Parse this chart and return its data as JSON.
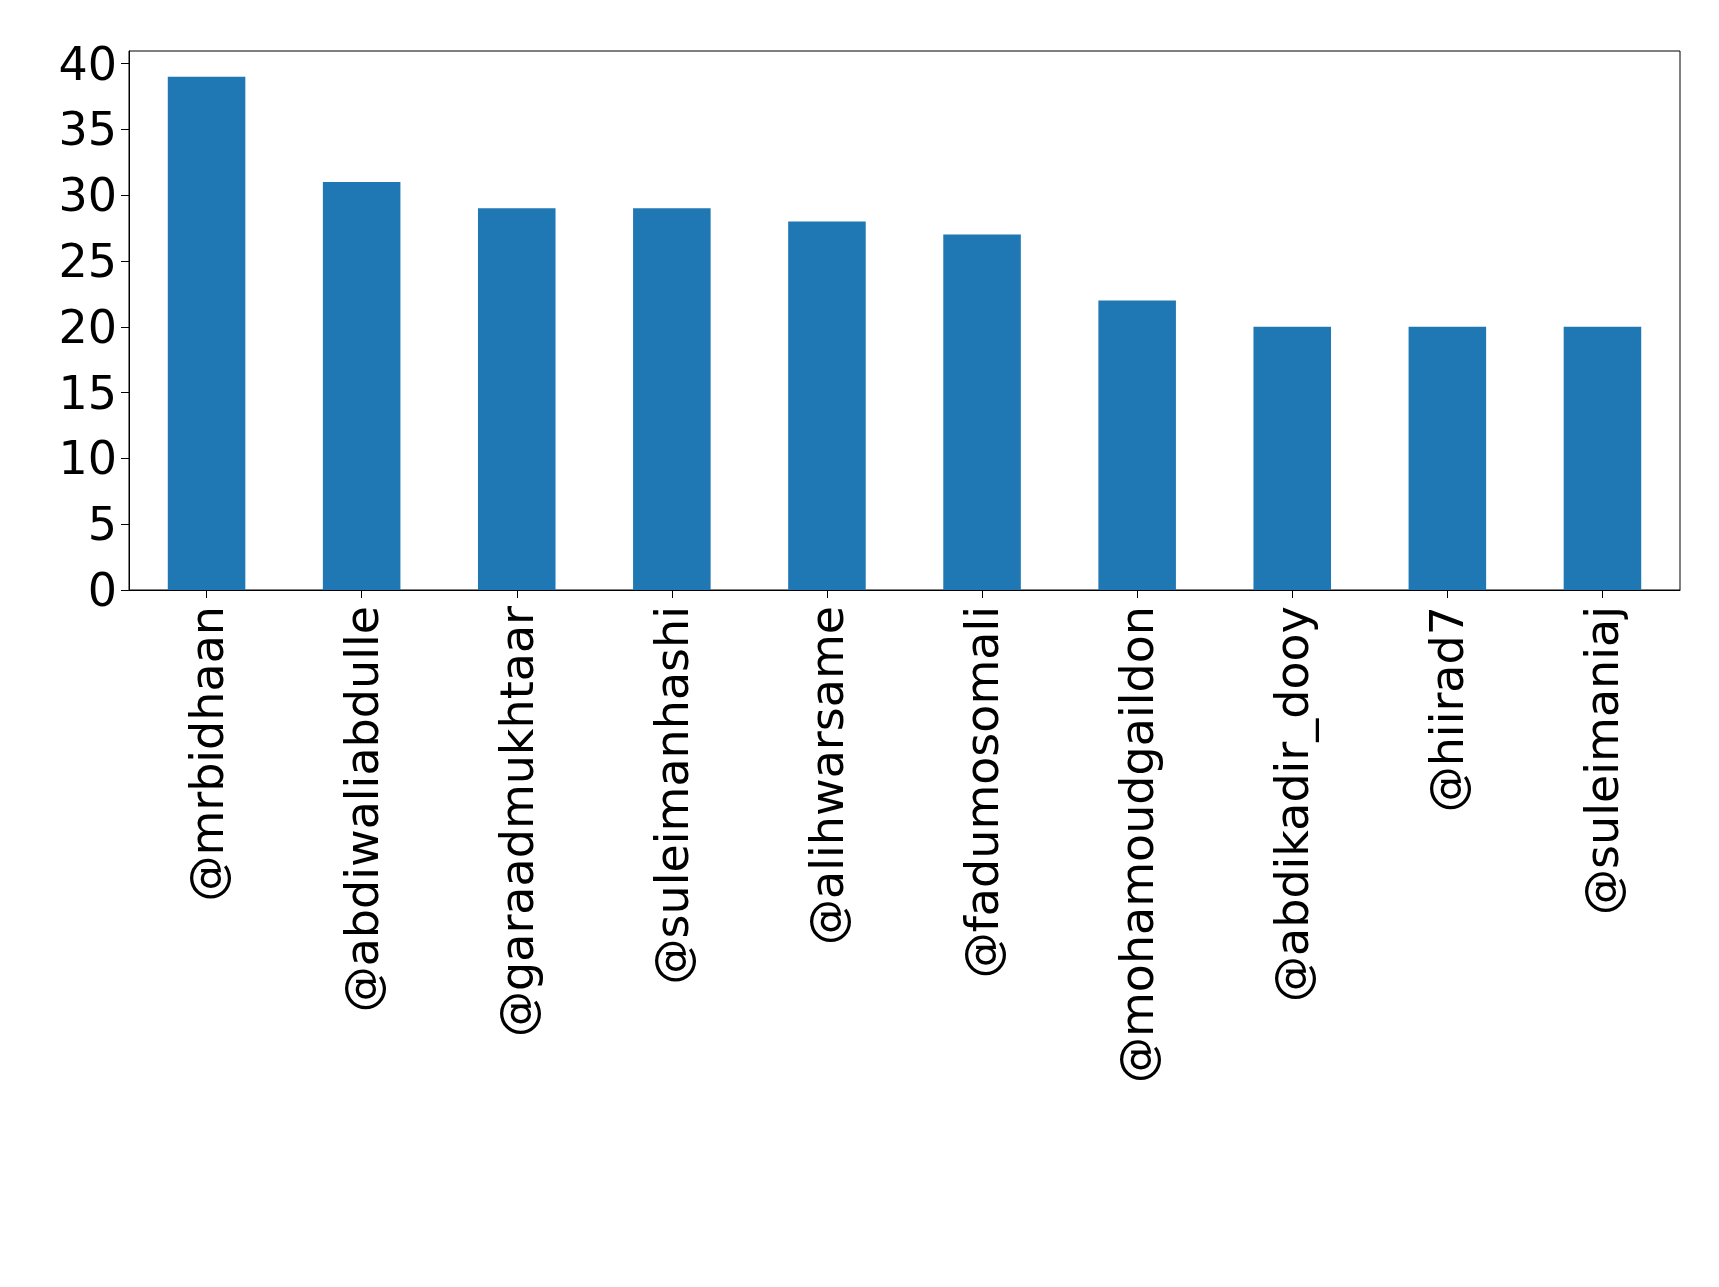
{
  "chart_data": {
    "type": "bar",
    "categories": [
      "@mrbidhaan",
      "@abdiwaliabdulle",
      "@garaadmukhtaar",
      "@suleimanhashi",
      "@alihwarsame",
      "@fadumosomali",
      "@mohamoudgaildon",
      "@abdikadir_dooy",
      "@hiirad7",
      "@suleimaniaj"
    ],
    "values": [
      39,
      31,
      29,
      29,
      28,
      27,
      22,
      20,
      20,
      20
    ],
    "color": "#1f77b4",
    "ylim": [
      0,
      40.95
    ],
    "yticks": [
      0,
      5,
      10,
      15,
      20,
      25,
      30,
      35,
      40
    ]
  }
}
